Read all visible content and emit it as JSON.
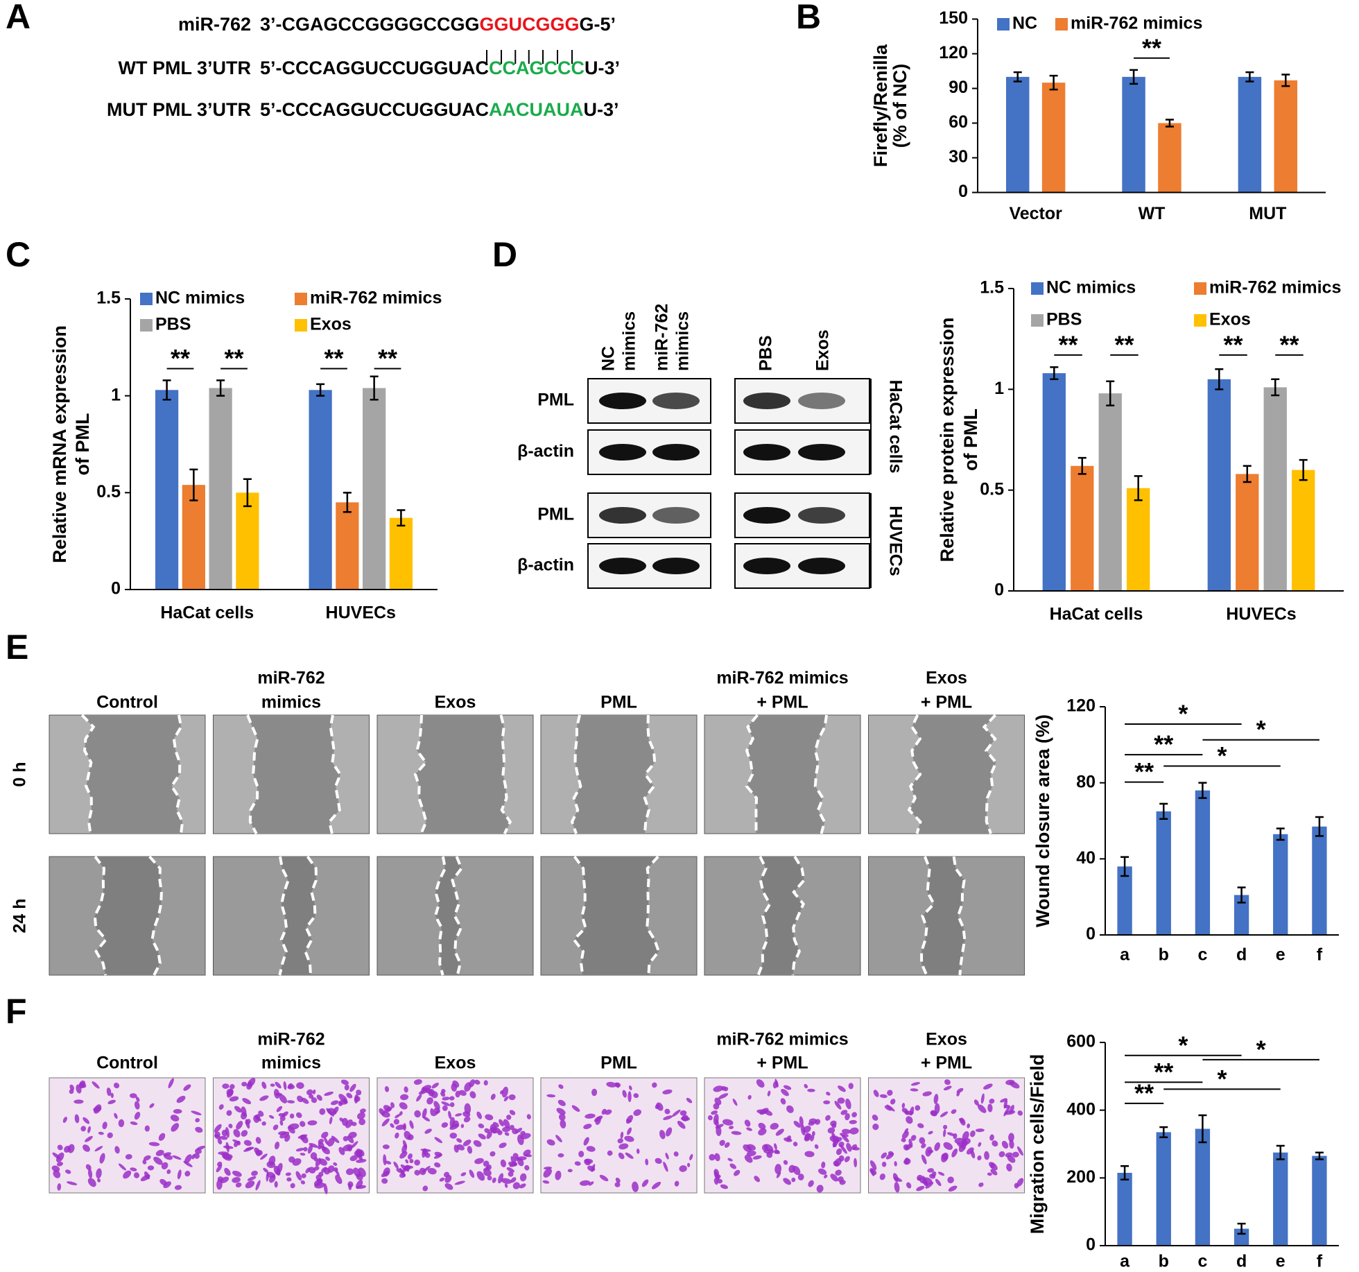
{
  "panels": [
    "A",
    "B",
    "C",
    "D",
    "E",
    "F"
  ],
  "sequences": [
    {
      "label": "miR-762",
      "parts": [
        "3’-CGAGCCGGGGCCGG",
        "GGUCGGG",
        "G-5’"
      ]
    },
    {
      "label": "WT PML 3’UTR",
      "parts": [
        "5’-CCCAGGUCCUGGUAC",
        "CCAGCCC",
        "U-3’"
      ]
    },
    {
      "label": "MUT PML 3’UTR",
      "parts": [
        "5’-CCCAGGUCCUGGUAC",
        "AACUAUA",
        "U-3’"
      ]
    }
  ],
  "blot": {
    "columns": [
      [
        "NC",
        "mimics"
      ],
      [
        "miR-762",
        "mimics"
      ],
      [
        "PBS"
      ],
      [
        "Exos"
      ]
    ],
    "rows": [
      "PML",
      "β-actin",
      "PML",
      "β-actin"
    ],
    "groups": [
      "HaCat cells",
      "HUVECs"
    ]
  },
  "wound": {
    "columns": [
      [
        "Control"
      ],
      [
        "miR-762",
        "mimics"
      ],
      [
        "Exos"
      ],
      [
        "PML"
      ],
      [
        "miR-762 mimics",
        "+ PML"
      ],
      [
        "Exos",
        "+ PML"
      ]
    ],
    "rows": [
      "0 h",
      "24 h"
    ]
  },
  "transwell": {
    "columns": [
      [
        "Control"
      ],
      [
        "miR-762",
        "mimics"
      ],
      [
        "Exos"
      ],
      [
        "PML"
      ],
      [
        "miR-762 mimics",
        "+ PML"
      ],
      [
        "Exos",
        "+ PML"
      ]
    ]
  },
  "chart_data": [
    {
      "type": "bar",
      "ylabel": [
        "Firefly/Renilla",
        "(% of NC)"
      ],
      "categories": [
        "Vector",
        "WT",
        "MUT"
      ],
      "series": [
        {
          "name": "NC",
          "color": "#4472c4",
          "values": [
            100,
            100,
            100
          ],
          "errors": [
            4,
            6,
            4
          ]
        },
        {
          "name": "miR-762 mimics",
          "color": "#ed7d31",
          "values": [
            95,
            60,
            97
          ],
          "errors": [
            6,
            3,
            5
          ]
        }
      ],
      "ylim": [
        0,
        150
      ],
      "yticks": [
        0,
        30,
        60,
        90,
        120,
        150
      ],
      "annotations": [
        "**"
      ]
    },
    {
      "type": "bar",
      "ylabel": [
        "Relative mRNA expression",
        "of PML"
      ],
      "categories": [
        "HaCat cells",
        "HUVECs"
      ],
      "series": [
        {
          "name": "NC mimics",
          "color": "#4472c4",
          "values": [
            1.03,
            1.03
          ],
          "errors": [
            0.05,
            0.03
          ]
        },
        {
          "name": "miR-762 mimics",
          "color": "#ed7d31",
          "values": [
            0.54,
            0.45
          ],
          "errors": [
            0.08,
            0.05
          ]
        },
        {
          "name": "PBS",
          "color": "#a5a5a5",
          "values": [
            1.04,
            1.04
          ],
          "errors": [
            0.04,
            0.06
          ]
        },
        {
          "name": "Exos",
          "color": "#ffc000",
          "values": [
            0.5,
            0.37
          ],
          "errors": [
            0.07,
            0.04
          ]
        }
      ],
      "ylim": [
        0,
        1.5
      ],
      "yticks": [
        0,
        0.5,
        1,
        1.5
      ],
      "annotations": [
        "**",
        "**",
        "**",
        "**"
      ]
    },
    {
      "type": "bar",
      "ylabel": [
        "Relative protein expression",
        "of PML"
      ],
      "categories": [
        "HaCat cells",
        "HUVECs"
      ],
      "series": [
        {
          "name": "NC mimics",
          "color": "#4472c4",
          "values": [
            1.08,
            1.05
          ],
          "errors": [
            0.03,
            0.05
          ]
        },
        {
          "name": "miR-762 mimics",
          "color": "#ed7d31",
          "values": [
            0.62,
            0.58
          ],
          "errors": [
            0.04,
            0.04
          ]
        },
        {
          "name": "PBS",
          "color": "#a5a5a5",
          "values": [
            0.98,
            1.01
          ],
          "errors": [
            0.06,
            0.04
          ]
        },
        {
          "name": "Exos",
          "color": "#ffc000",
          "values": [
            0.51,
            0.6
          ],
          "errors": [
            0.06,
            0.05
          ]
        }
      ],
      "ylim": [
        0,
        1.5
      ],
      "yticks": [
        0,
        0.5,
        1,
        1.5
      ],
      "annotations": [
        "**",
        "**",
        "**",
        "**"
      ]
    },
    {
      "type": "bar",
      "ylabel": [
        "Wound closure area (%)"
      ],
      "categories": [
        "a",
        "b",
        "c",
        "d",
        "e",
        "f"
      ],
      "series": [
        {
          "color": "#4472c4",
          "values": [
            36,
            65,
            76,
            21,
            53,
            57
          ],
          "errors": [
            5,
            4,
            4,
            4,
            3,
            5
          ]
        }
      ],
      "ylim": [
        0,
        120
      ],
      "yticks": [
        0,
        40,
        80,
        120
      ],
      "annotations": [
        "*",
        "**",
        "**",
        "*",
        "*"
      ]
    },
    {
      "type": "bar",
      "ylabel": [
        "Migration cells/Field"
      ],
      "categories": [
        "a",
        "b",
        "c",
        "d",
        "e",
        "f"
      ],
      "series": [
        {
          "color": "#4472c4",
          "values": [
            215,
            335,
            345,
            50,
            275,
            265
          ],
          "errors": [
            20,
            15,
            40,
            15,
            20,
            10
          ]
        }
      ],
      "ylim": [
        0,
        600
      ],
      "yticks": [
        0,
        200,
        400,
        600
      ],
      "annotations": [
        "*",
        "**",
        "**",
        "*",
        "*"
      ]
    }
  ]
}
